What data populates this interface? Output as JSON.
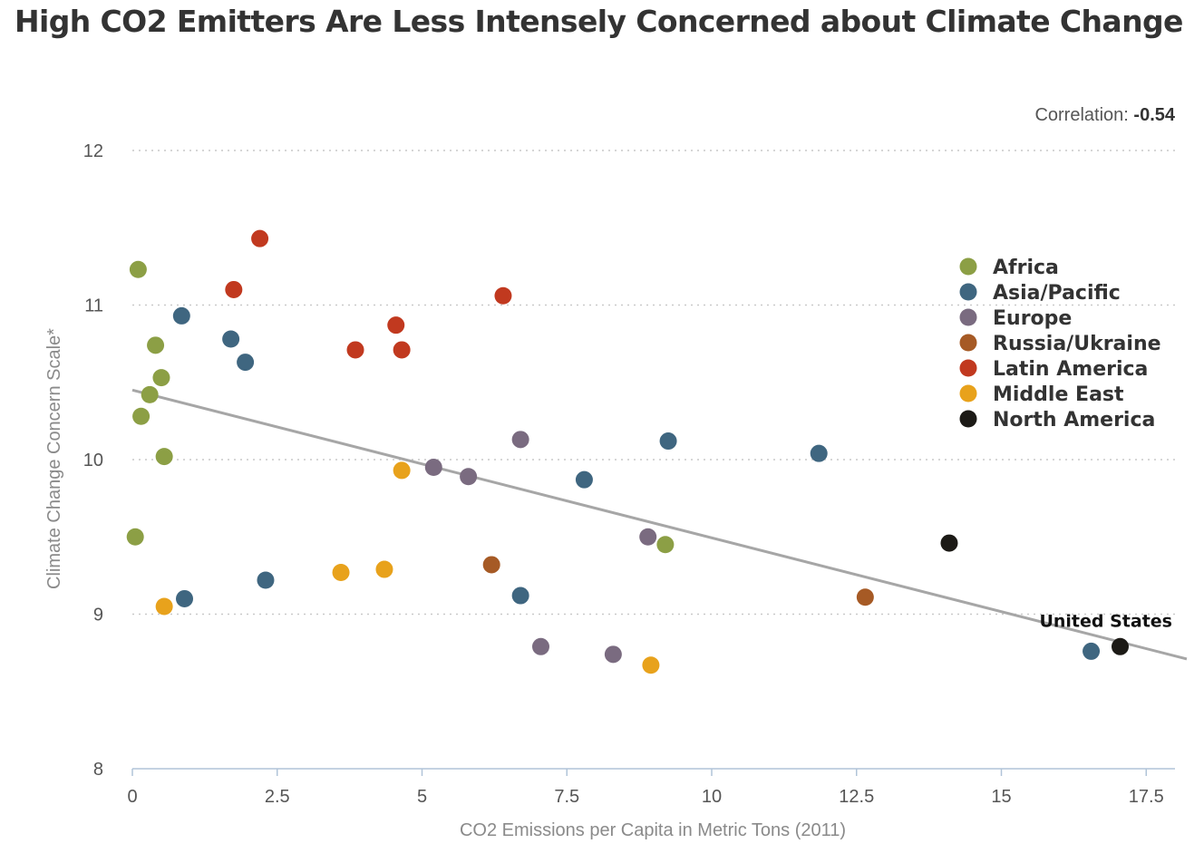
{
  "title": "High CO2 Emitters Are Less Intensely Concerned about Climate Change",
  "correlation": {
    "label": "Correlation:",
    "value": "-0.54"
  },
  "colors": {
    "Africa": "#8c9f45",
    "Asia/Pacific": "#3f6680",
    "Europe": "#7a6b80",
    "Russia/Ukraine": "#a65a25",
    "Latin America": "#c1391f",
    "Middle East": "#e8a21c",
    "North America": "#1c1a16",
    "trend": "#a6a6a6",
    "grid": "#c9c9c9",
    "axis": "#b0c4d8"
  },
  "chart_data": {
    "type": "scatter",
    "title": "High CO2 Emitters Are Less Intensely Concerned about Climate Change",
    "xlabel": "CO2 Emissions per Capita in Metric Tons (2011)",
    "ylabel": "Climate Change Concern Scale*",
    "xlim": [
      0,
      18.2
    ],
    "ylim": [
      8,
      12
    ],
    "xticks": [
      0,
      2.5,
      5,
      7.5,
      10,
      12.5,
      15,
      17.5
    ],
    "xtick_labels": [
      "0",
      "2.5",
      "5",
      "7.5",
      "10",
      "12.5",
      "15",
      "17.5"
    ],
    "yticks": [
      8,
      9,
      10,
      11,
      12
    ],
    "ytick_labels": [
      "8",
      "9",
      "10",
      "11",
      "12"
    ],
    "grid": "horizontal dotted",
    "legend_position": "right",
    "trendline": {
      "x": [
        0,
        18.2
      ],
      "y": [
        10.45,
        8.71
      ]
    },
    "series": [
      {
        "name": "Africa",
        "points": [
          [
            0.1,
            11.23
          ],
          [
            0.4,
            10.74
          ],
          [
            0.5,
            10.53
          ],
          [
            0.3,
            10.42
          ],
          [
            0.15,
            10.28
          ],
          [
            0.55,
            10.02
          ],
          [
            0.05,
            9.5
          ],
          [
            9.2,
            9.45
          ]
        ]
      },
      {
        "name": "Asia/Pacific",
        "points": [
          [
            0.85,
            10.93
          ],
          [
            1.7,
            10.78
          ],
          [
            1.95,
            10.63
          ],
          [
            2.3,
            9.22
          ],
          [
            0.9,
            9.1
          ],
          [
            6.7,
            9.12
          ],
          [
            7.8,
            9.87
          ],
          [
            9.25,
            10.12
          ],
          [
            11.85,
            10.04
          ],
          [
            16.55,
            8.76
          ]
        ]
      },
      {
        "name": "Europe",
        "points": [
          [
            5.2,
            9.95
          ],
          [
            5.8,
            9.89
          ],
          [
            6.7,
            10.13
          ],
          [
            8.9,
            9.5
          ],
          [
            7.05,
            8.79
          ],
          [
            8.3,
            8.74
          ]
        ]
      },
      {
        "name": "Russia/Ukraine",
        "points": [
          [
            6.2,
            9.32
          ],
          [
            12.65,
            9.11
          ]
        ]
      },
      {
        "name": "Latin America",
        "points": [
          [
            2.2,
            11.43
          ],
          [
            1.75,
            11.1
          ],
          [
            6.4,
            11.06
          ],
          [
            4.55,
            10.87
          ],
          [
            3.85,
            10.71
          ],
          [
            4.65,
            10.71
          ]
        ]
      },
      {
        "name": "Middle East",
        "points": [
          [
            4.65,
            9.93
          ],
          [
            3.6,
            9.27
          ],
          [
            4.35,
            9.29
          ],
          [
            0.55,
            9.05
          ],
          [
            8.95,
            8.67
          ]
        ]
      },
      {
        "name": "North America",
        "points": [
          [
            14.1,
            9.46
          ],
          [
            17.05,
            8.79
          ]
        ]
      }
    ],
    "annotations": [
      {
        "text": "United States",
        "x": 17.05,
        "y": 8.79
      }
    ]
  }
}
